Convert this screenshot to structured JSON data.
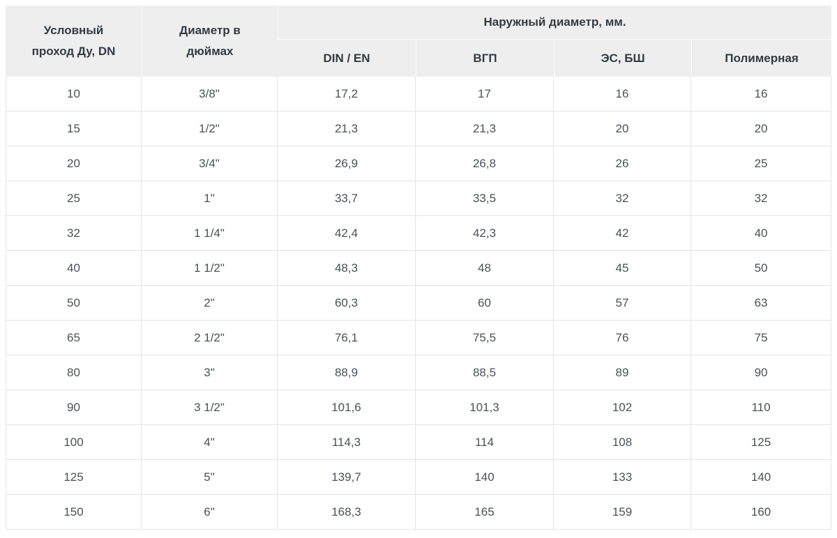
{
  "accent_colors": {
    "header_bg": "#eeeeee",
    "header_text": "#333a42",
    "body_text": "#4a5059",
    "grid_line": "#e4e4e4"
  },
  "chart_data": {
    "type": "table",
    "title": "",
    "header": {
      "col1": "Условный проход Ду, DN",
      "col2": "Диаметр в дюймах",
      "group": "Наружный диаметр, мм.",
      "subcols": [
        "DIN / EN",
        "ВГП",
        "ЭС, БШ",
        "Полимерная"
      ]
    },
    "rows": [
      [
        "10",
        "3/8\"",
        "17,2",
        "17",
        "16",
        "16"
      ],
      [
        "15",
        "1/2\"",
        "21,3",
        "21,3",
        "20",
        "20"
      ],
      [
        "20",
        "3/4\"",
        "26,9",
        "26,8",
        "26",
        "25"
      ],
      [
        "25",
        "1\"",
        "33,7",
        "33,5",
        "32",
        "32"
      ],
      [
        "32",
        "1 1/4\"",
        "42,4",
        "42,3",
        "42",
        "40"
      ],
      [
        "40",
        "1 1/2\"",
        "48,3",
        "48",
        "45",
        "50"
      ],
      [
        "50",
        "2\"",
        "60,3",
        "60",
        "57",
        "63"
      ],
      [
        "65",
        "2 1/2\"",
        "76,1",
        "75,5",
        "76",
        "75"
      ],
      [
        "80",
        "3\"",
        "88,9",
        "88,5",
        "89",
        "90"
      ],
      [
        "90",
        "3 1/2\"",
        "101,6",
        "101,3",
        "102",
        "110"
      ],
      [
        "100",
        "4\"",
        "114,3",
        "114",
        "108",
        "125"
      ],
      [
        "125",
        "5\"",
        "139,7",
        "140",
        "133",
        "140"
      ],
      [
        "150",
        "6\"",
        "168,3",
        "165",
        "159",
        "160"
      ]
    ]
  }
}
